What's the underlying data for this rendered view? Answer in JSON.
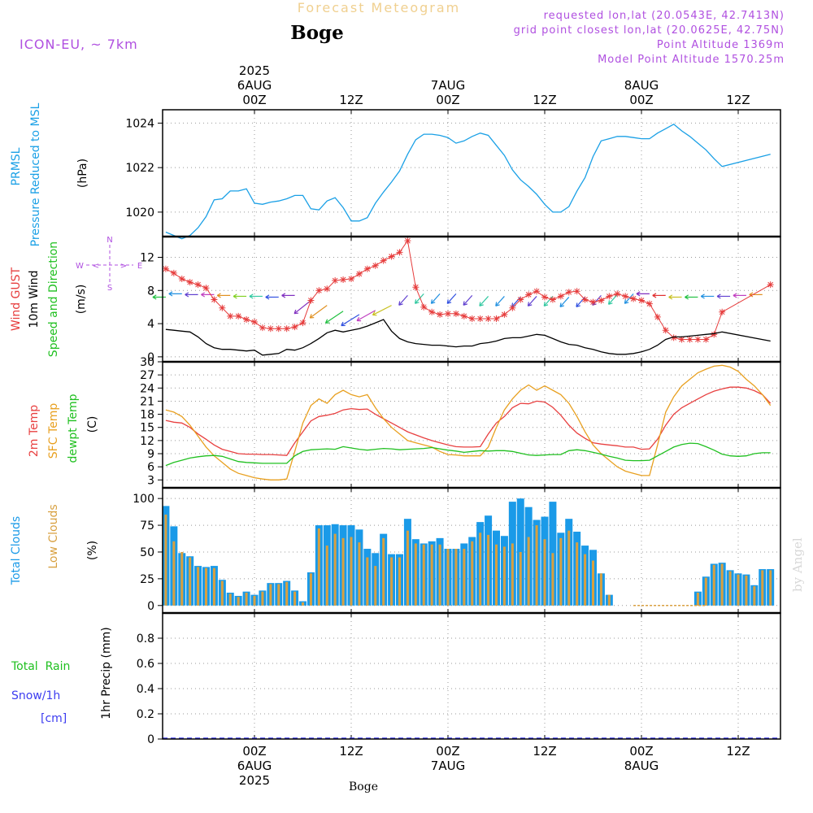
{
  "header": {
    "subtitle": "Forecast Meteogram",
    "station": "Boge",
    "model": "ICON-EU, ~ 7km",
    "requested": "requested lon,lat (20.0543E, 42.7413N)",
    "gridpoint": "grid point closest lon,lat (20.0625E, 42.75N)",
    "point_alt": "Point Altitude 1369m",
    "model_alt": "Model Point Altitude 1570.25m",
    "footer": "Boge",
    "credit": "by Angel"
  },
  "colors": {
    "pressure": "#1aa0e6",
    "gust": "#e63c3c",
    "wind": "#000000",
    "temp": "#e84040",
    "sfc": "#e8a020",
    "dewpt": "#20c020",
    "total_clouds": "#1a9ae8",
    "low_clouds": "#d8a040",
    "rain": "#20c020",
    "snow": "#3c3cf0",
    "violet": "#b050e0"
  },
  "top_axis": {
    "ticks": [
      {
        "hour": 0,
        "lines": [
          "2025",
          "6AUG",
          "00Z"
        ]
      },
      {
        "hour": 12,
        "lines": [
          "12Z"
        ]
      },
      {
        "hour": 24,
        "lines": [
          "7AUG",
          "00Z"
        ]
      },
      {
        "hour": 36,
        "lines": [
          "12Z"
        ]
      },
      {
        "hour": 48,
        "lines": [
          "8AUG",
          "00Z"
        ]
      },
      {
        "hour": 60,
        "lines": [
          "12Z"
        ]
      }
    ]
  },
  "bottom_axis": {
    "ticks": [
      {
        "hour": 0,
        "lines": [
          "00Z",
          "6AUG",
          "2025"
        ]
      },
      {
        "hour": 12,
        "lines": [
          "12Z"
        ]
      },
      {
        "hour": 24,
        "lines": [
          "00Z",
          "7AUG"
        ]
      },
      {
        "hour": 36,
        "lines": [
          "12Z"
        ]
      },
      {
        "hour": 48,
        "lines": [
          "00Z",
          "8AUG"
        ]
      },
      {
        "hour": 60,
        "lines": [
          "12Z"
        ]
      }
    ]
  },
  "chart_data": [
    {
      "type": "line",
      "panel": "pressure",
      "label_lines": [
        "PRMSL",
        "Pressure Reduced to MSL"
      ],
      "ylabel": "(hPa)",
      "ylim": [
        1018.9,
        1024.6
      ],
      "yticks": [
        1020,
        1022,
        1024
      ],
      "grid": true,
      "x": [
        -11,
        -10,
        -9,
        -8,
        -7,
        -6,
        -5,
        -4,
        -3,
        -2,
        -1,
        0,
        1,
        2,
        3,
        4,
        5,
        6,
        7,
        8,
        9,
        10,
        11,
        12,
        13,
        14,
        15,
        16,
        17,
        18,
        19,
        20,
        21,
        22,
        23,
        24,
        25,
        26,
        27,
        28,
        29,
        30,
        31,
        32,
        33,
        34,
        35,
        36,
        37,
        38,
        39,
        40,
        41,
        42,
        43,
        44,
        45,
        46,
        47,
        48,
        49,
        50,
        51,
        52,
        53,
        54,
        55,
        56,
        57,
        58,
        64
      ],
      "series": [
        {
          "values": [
            1019.1,
            1018.95,
            1018.8,
            1018.95,
            1019.3,
            1019.8,
            1020.55,
            1020.6,
            1020.95,
            1020.95,
            1021.05,
            1020.4,
            1020.35,
            1020.45,
            1020.5,
            1020.6,
            1020.75,
            1020.75,
            1020.15,
            1020.1,
            1020.5,
            1020.65,
            1020.2,
            1019.6,
            1019.6,
            1019.75,
            1020.4,
            1020.9,
            1021.35,
            1021.85,
            1022.6,
            1023.25,
            1023.5,
            1023.5,
            1023.45,
            1023.35,
            1023.1,
            1023.2,
            1023.4,
            1023.55,
            1023.45,
            1023.0,
            1022.55,
            1021.9,
            1021.45,
            1021.15,
            1020.8,
            1020.35,
            1020.0,
            1020.0,
            1020.25,
            1020.95,
            1021.55,
            1022.5,
            1023.2,
            1023.3,
            1023.4,
            1023.4,
            1023.35,
            1023.3,
            1023.3,
            1023.55,
            1023.75,
            1023.95,
            1023.65,
            1023.4,
            1023.1,
            1022.8,
            1022.4,
            1022.05,
            1022.6
          ]
        }
      ]
    },
    {
      "type": "line",
      "panel": "wind",
      "label_lines": [
        "Wind GUST",
        "10m Wind",
        "Speed and Direction"
      ],
      "ylabel": "(m/s)",
      "compass": {
        "n": "N",
        "s": "S",
        "e": "E",
        "w": "W"
      },
      "ylim": [
        -0.6,
        14.5
      ],
      "yticks": [
        0,
        4,
        8,
        12
      ],
      "grid": true,
      "x": [
        -11,
        -10,
        -9,
        -8,
        -7,
        -6,
        -5,
        -4,
        -3,
        -2,
        -1,
        0,
        1,
        2,
        3,
        4,
        5,
        6,
        7,
        8,
        9,
        10,
        11,
        12,
        13,
        14,
        15,
        16,
        17,
        18,
        19,
        20,
        21,
        22,
        23,
        24,
        25,
        26,
        27,
        28,
        29,
        30,
        31,
        32,
        33,
        34,
        35,
        36,
        37,
        38,
        39,
        40,
        41,
        42,
        43,
        44,
        45,
        46,
        47,
        48,
        49,
        50,
        51,
        52,
        53,
        54,
        55,
        56,
        57,
        58,
        64
      ],
      "series": [
        {
          "name": "Wind GUST",
          "values": [
            10.6,
            10.1,
            9.4,
            9.0,
            8.7,
            8.3,
            6.9,
            5.9,
            4.9,
            4.9,
            4.5,
            4.2,
            3.5,
            3.4,
            3.4,
            3.4,
            3.6,
            4.1,
            6.8,
            8.0,
            8.2,
            9.2,
            9.3,
            9.4,
            10.0,
            10.6,
            11.0,
            11.6,
            12.1,
            12.6,
            14.0,
            8.4,
            6.0,
            5.4,
            5.1,
            5.2,
            5.2,
            4.9,
            4.6,
            4.6,
            4.6,
            4.6,
            5.1,
            5.9,
            6.9,
            7.5,
            7.9,
            7.2,
            6.9,
            7.3,
            7.8,
            7.9,
            6.9,
            6.6,
            6.8,
            7.3,
            7.6,
            7.3,
            7.0,
            6.8,
            6.4,
            4.8,
            3.2,
            2.3,
            2.1,
            2.1,
            2.1,
            2.1,
            2.7,
            5.4,
            8.7
          ]
        },
        {
          "name": "10m Wind",
          "values": [
            3.3,
            3.2,
            3.1,
            3.0,
            2.4,
            1.6,
            1.1,
            0.9,
            0.9,
            0.8,
            0.7,
            0.8,
            0.2,
            0.3,
            0.4,
            0.9,
            0.8,
            1.1,
            1.6,
            2.2,
            2.9,
            3.2,
            3.0,
            3.2,
            3.4,
            3.7,
            4.1,
            4.5,
            3.1,
            2.2,
            1.8,
            1.6,
            1.5,
            1.4,
            1.4,
            1.3,
            1.2,
            1.3,
            1.3,
            1.6,
            1.7,
            1.9,
            2.2,
            2.3,
            2.3,
            2.5,
            2.7,
            2.6,
            2.2,
            1.8,
            1.5,
            1.4,
            1.1,
            0.9,
            0.6,
            0.4,
            0.3,
            0.3,
            0.4,
            0.6,
            0.9,
            1.4,
            2.1,
            2.4,
            2.4,
            2.5,
            2.6,
            2.7,
            2.8,
            3.0,
            1.9
          ]
        }
      ],
      "wind_barbs": {
        "x": [
          -11,
          -9,
          -7,
          -5,
          -3,
          -1,
          1,
          3,
          5,
          7,
          9,
          11,
          13,
          15,
          17,
          19,
          21,
          23,
          25,
          27,
          29,
          31,
          33,
          35,
          37,
          39,
          41,
          43,
          45,
          47,
          49,
          51,
          53,
          55,
          57,
          59,
          61,
          63
        ],
        "speed": [
          7.2,
          7.6,
          7.5,
          7.5,
          7.4,
          7.3,
          7.3,
          7.2,
          7.4,
          6.8,
          6.2,
          5.5,
          5.1,
          5.6,
          6.2,
          7.4,
          7.6,
          7.6,
          7.6,
          7.4,
          7.3,
          7.3,
          7.2,
          7.3,
          7.3,
          7.2,
          7.2,
          7.4,
          7.5,
          7.6,
          7.6,
          7.4,
          7.2,
          7.2,
          7.3,
          7.3,
          7.4,
          7.5
        ]
      }
    },
    {
      "type": "line",
      "panel": "temperature",
      "label_lines": [
        "2m Temp",
        "SFC Temp",
        "dewpt Temp"
      ],
      "ylabel": "(C)",
      "ylim": [
        1.2,
        30.0
      ],
      "yticks": [
        3,
        6,
        9,
        12,
        15,
        18,
        21,
        24,
        27,
        30
      ],
      "grid": true,
      "x": [
        -11,
        -10,
        -9,
        -8,
        -7,
        -6,
        -5,
        -4,
        -3,
        -2,
        -1,
        0,
        1,
        2,
        3,
        4,
        5,
        6,
        7,
        8,
        9,
        10,
        11,
        12,
        13,
        14,
        15,
        16,
        17,
        18,
        19,
        20,
        21,
        22,
        23,
        24,
        25,
        26,
        27,
        28,
        29,
        30,
        31,
        32,
        33,
        34,
        35,
        36,
        37,
        38,
        39,
        40,
        41,
        42,
        43,
        44,
        45,
        46,
        47,
        48,
        49,
        50,
        51,
        52,
        53,
        54,
        55,
        56,
        57,
        58,
        59,
        60,
        61,
        62,
        63,
        64
      ],
      "series": [
        {
          "name": "2m Temp",
          "values": [
            16.6,
            16.2,
            16.0,
            15.0,
            13.5,
            12.3,
            11.0,
            10.0,
            9.5,
            9.0,
            8.9,
            8.9,
            8.8,
            8.8,
            8.7,
            8.6,
            11.5,
            14.0,
            16.5,
            17.5,
            17.8,
            18.2,
            19.0,
            19.3,
            19.1,
            19.2,
            18.0,
            17.0,
            16.0,
            15.0,
            14.0,
            13.3,
            12.6,
            12.0,
            11.5,
            11.0,
            10.6,
            10.5,
            10.5,
            10.6,
            13.5,
            16.0,
            17.5,
            19.5,
            20.5,
            20.4,
            21.0,
            20.8,
            19.6,
            17.8,
            15.5,
            13.7,
            12.5,
            11.5,
            11.2,
            11.0,
            10.8,
            10.5,
            10.5,
            10.0,
            10.1,
            12.3,
            15.5,
            18.0,
            19.5,
            20.5,
            21.5,
            22.5,
            23.3,
            23.8,
            24.2,
            24.2,
            24.0,
            23.4,
            22.5,
            20.5
          ]
        },
        {
          "name": "SFC Temp",
          "values": [
            19.0,
            18.5,
            17.5,
            15.5,
            13.0,
            10.5,
            8.5,
            7.0,
            5.5,
            4.5,
            4.0,
            3.5,
            3.2,
            3.0,
            3.0,
            3.2,
            9.5,
            16.0,
            20.0,
            21.5,
            20.5,
            22.5,
            23.5,
            22.5,
            22.0,
            22.5,
            19.5,
            17.0,
            15.0,
            13.5,
            12.0,
            11.5,
            11.0,
            10.5,
            9.5,
            8.8,
            8.7,
            8.5,
            8.5,
            8.5,
            10.5,
            15.0,
            19.0,
            21.5,
            23.5,
            24.7,
            23.5,
            24.5,
            23.5,
            22.5,
            20.5,
            17.5,
            14.0,
            11.0,
            9.0,
            7.5,
            6.0,
            5.0,
            4.5,
            4.0,
            4.0,
            11.0,
            18.5,
            22.0,
            24.5,
            26.0,
            27.5,
            28.3,
            29.0,
            29.2,
            28.8,
            27.8,
            26.0,
            24.5,
            22.5,
            20.0
          ]
        },
        {
          "name": "dewpt Temp",
          "values": [
            6.3,
            7.0,
            7.5,
            8.0,
            8.3,
            8.5,
            8.6,
            8.4,
            7.8,
            7.2,
            7.0,
            6.9,
            6.8,
            6.8,
            6.8,
            6.8,
            8.5,
            9.5,
            9.9,
            10.0,
            10.1,
            10.0,
            10.6,
            10.3,
            10.0,
            9.8,
            10.0,
            10.2,
            10.1,
            9.9,
            10.0,
            10.1,
            10.2,
            10.4,
            10.1,
            9.8,
            9.6,
            9.3,
            9.5,
            9.7,
            9.6,
            9.7,
            9.7,
            9.5,
            9.1,
            8.7,
            8.6,
            8.7,
            8.8,
            8.8,
            9.7,
            9.9,
            9.7,
            9.3,
            8.9,
            8.4,
            8.0,
            7.5,
            7.4,
            7.4,
            7.5,
            8.5,
            9.5,
            10.5,
            11.1,
            11.4,
            11.3,
            10.6,
            9.8,
            8.9,
            8.5,
            8.4,
            8.5,
            9.0,
            9.2,
            9.2
          ]
        }
      ]
    },
    {
      "type": "bar",
      "panel": "clouds",
      "label_lines": [
        "Total Clouds",
        "Low Clouds"
      ],
      "ylabel": "(%)",
      "ylim": [
        -7,
        110
      ],
      "yticks": [
        0,
        25,
        50,
        75,
        100
      ],
      "grid": true,
      "x": [
        -11,
        -10,
        -9,
        -8,
        -7,
        -6,
        -5,
        -4,
        -3,
        -2,
        -1,
        0,
        1,
        2,
        3,
        4,
        5,
        6,
        7,
        8,
        9,
        10,
        11,
        12,
        13,
        14,
        15,
        16,
        17,
        18,
        19,
        20,
        21,
        22,
        23,
        24,
        25,
        26,
        27,
        28,
        29,
        30,
        31,
        32,
        33,
        34,
        35,
        36,
        37,
        38,
        39,
        40,
        41,
        42,
        43,
        44,
        45,
        46,
        47,
        48,
        49,
        50,
        51,
        52,
        53,
        54,
        55,
        56,
        57,
        58,
        59,
        60,
        61,
        62,
        63,
        64
      ],
      "series": [
        {
          "name": "Total Clouds",
          "values": [
            93,
            74,
            49,
            46,
            37,
            36,
            37,
            24,
            12,
            9,
            13,
            10,
            14,
            21,
            21,
            23,
            14,
            4,
            31,
            75,
            75,
            76,
            75,
            75,
            71,
            53,
            49,
            67,
            48,
            48,
            81,
            62,
            58,
            60,
            63,
            53,
            53,
            58,
            64,
            78,
            84,
            70,
            65,
            97,
            100,
            92,
            80,
            83,
            97,
            68,
            81,
            69,
            56,
            52,
            30,
            10,
            0,
            0,
            0,
            0,
            0,
            0,
            0,
            0,
            0,
            0,
            13,
            27,
            39,
            40,
            33,
            30,
            29,
            19,
            34,
            34
          ]
        },
        {
          "name": "Low Clouds",
          "values": [
            85,
            60,
            50,
            45,
            36,
            35,
            35,
            23,
            11,
            8,
            12,
            9,
            13,
            20,
            20,
            22,
            13,
            3,
            30,
            72,
            56,
            67,
            63,
            64,
            59,
            45,
            37,
            63,
            45,
            45,
            70,
            58,
            57,
            57,
            57,
            53,
            53,
            53,
            60,
            68,
            66,
            57,
            55,
            58,
            50,
            64,
            75,
            62,
            49,
            63,
            70,
            59,
            48,
            42,
            30,
            10,
            0,
            0,
            0,
            0,
            0,
            0,
            0,
            0,
            0,
            0,
            12,
            26,
            38,
            39,
            32,
            29,
            28,
            18,
            33,
            33
          ]
        }
      ]
    },
    {
      "type": "bar",
      "panel": "precip",
      "label_lines": [
        "Total  Rain",
        "Snow/1h",
        "[cm]"
      ],
      "ylabel": "1hr Precip (mm)",
      "ylim": [
        0,
        1.0
      ],
      "yticks": [
        0,
        0.2,
        0.4,
        0.6,
        0.8
      ],
      "grid": true,
      "x": [
        -11,
        64
      ],
      "series": [
        {
          "name": "Total Rain",
          "values": [
            0,
            0
          ]
        },
        {
          "name": "Snow/1h",
          "values": [
            0,
            0
          ]
        }
      ]
    }
  ]
}
